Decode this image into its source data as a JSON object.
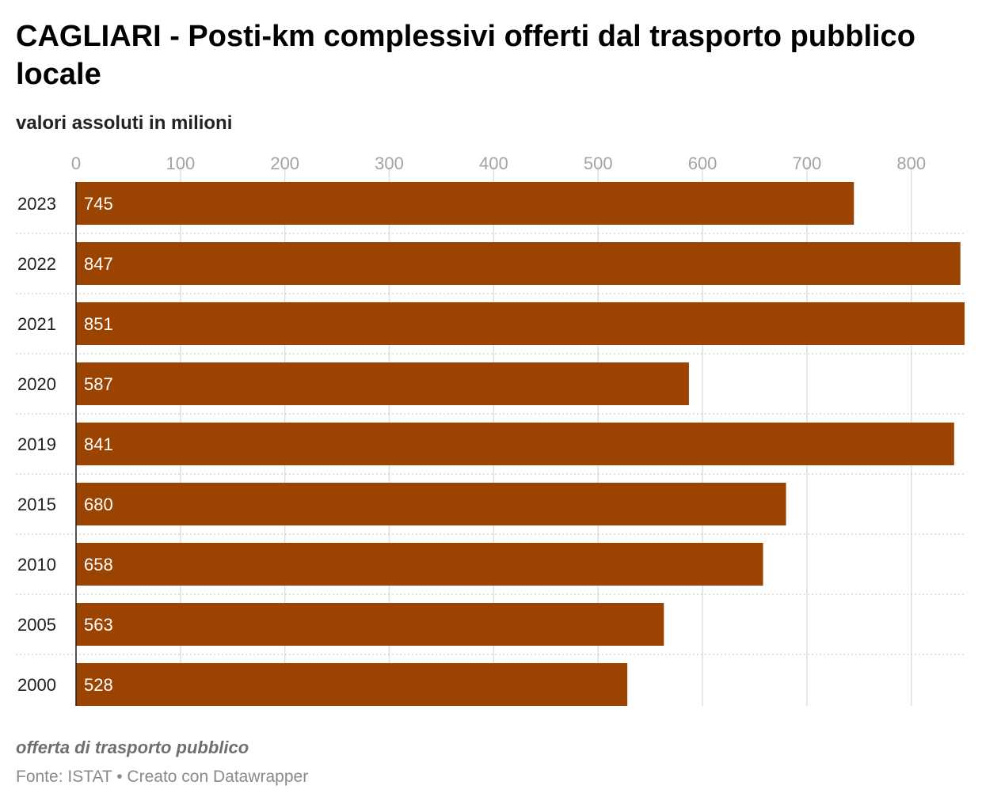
{
  "header": {
    "title": "CAGLIARI - Posti-km complessivi offerti dal trasporto pubblico locale",
    "subtitle": "valori assoluti in milioni"
  },
  "footer": {
    "note": "offerta di trasporto pubblico",
    "source_prefix": "Fonte: ",
    "source_name": "ISTAT",
    "separator": " • ",
    "credit": "Creato con Datawrapper"
  },
  "colors": {
    "bar": "#9b4300",
    "grid": "#e0e0e0",
    "row_divider": "#cfcfcf",
    "axis": "#1d1d1d"
  },
  "chart_data": {
    "type": "bar",
    "orientation": "horizontal",
    "categories": [
      "2023",
      "2022",
      "2021",
      "2020",
      "2019",
      "2015",
      "2010",
      "2005",
      "2000"
    ],
    "values": [
      745,
      847,
      851,
      587,
      841,
      680,
      658,
      563,
      528
    ],
    "xlim": [
      0,
      851
    ],
    "xticks": [
      "0",
      "100",
      "200",
      "300",
      "400",
      "500",
      "600",
      "700",
      "800"
    ],
    "title": "CAGLIARI - Posti-km complessivi offerti dal trasporto pubblico locale",
    "subtitle": "valori assoluti in milioni",
    "grid": true,
    "data_labels": true
  }
}
